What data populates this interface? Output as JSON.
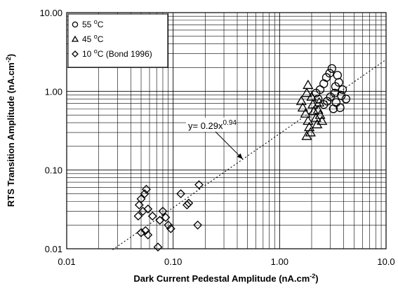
{
  "chart_data": {
    "type": "scatter",
    "x_scale": "log",
    "y_scale": "log",
    "xlim": [
      0.01,
      10.0
    ],
    "ylim": [
      0.01,
      10.0
    ],
    "grid": true,
    "legend_position": "top-left",
    "xlabel": {
      "text": "Dark Current Pedestal Amplitude (nA.cm",
      "sup": "-2",
      "tail": ")"
    },
    "ylabel": {
      "text": "RTS Transition Amplitude (nA.cm",
      "sup": "-2",
      "tail": ")"
    },
    "x_tick_labels": [
      "0.01",
      "0.10",
      "1.00",
      "10.0"
    ],
    "y_tick_labels": [
      "0.01",
      "0.10",
      "1.00",
      "10.00"
    ],
    "annotation": {
      "text": "y= 0.29x",
      "sup": "0.94",
      "arrow_to": [
        0.45,
        0.138
      ]
    },
    "fit": {
      "coef": 0.29,
      "exponent": 0.94,
      "x_range": [
        0.027,
        10.0
      ],
      "style": "dotted"
    },
    "series": [
      {
        "name": "55 °C",
        "label_parts": [
          "55 ",
          "o",
          "C"
        ],
        "marker": "circle",
        "points": [
          [
            2.4,
            1.05
          ],
          [
            2.6,
            1.25
          ],
          [
            2.75,
            1.5
          ],
          [
            3.1,
            1.95
          ],
          [
            2.95,
            1.7
          ],
          [
            3.5,
            1.6
          ],
          [
            3.6,
            1.3
          ],
          [
            3.9,
            1.05
          ],
          [
            4.2,
            0.8
          ],
          [
            3.3,
            0.95
          ],
          [
            3.0,
            0.85
          ],
          [
            2.8,
            0.75
          ],
          [
            3.4,
            0.72
          ],
          [
            3.7,
            0.62
          ],
          [
            3.2,
            0.6
          ],
          [
            2.6,
            0.68
          ],
          [
            2.3,
            0.8
          ],
          [
            2.2,
            0.95
          ],
          [
            3.8,
            0.88
          ],
          [
            3.35,
            1.15
          ]
        ]
      },
      {
        "name": "45 °C",
        "label_parts": [
          "45 ",
          "o",
          "C"
        ],
        "marker": "triangle",
        "points": [
          [
            1.85,
            1.2
          ],
          [
            1.8,
            0.95
          ],
          [
            1.6,
            0.75
          ],
          [
            1.65,
            0.62
          ],
          [
            1.75,
            0.52
          ],
          [
            1.85,
            0.42
          ],
          [
            1.9,
            0.35
          ],
          [
            1.8,
            0.27
          ],
          [
            2.0,
            0.85
          ],
          [
            2.05,
            0.68
          ],
          [
            2.1,
            0.56
          ],
          [
            2.2,
            0.46
          ],
          [
            2.25,
            0.38
          ],
          [
            2.3,
            0.58
          ],
          [
            2.4,
            0.5
          ],
          [
            2.5,
            0.42
          ],
          [
            2.35,
            0.72
          ],
          [
            1.95,
            0.3
          ]
        ]
      },
      {
        "name": "10 °C (Bond 1996)",
        "label_parts": [
          "10 ",
          "o",
          "C (Bond 1996)"
        ],
        "marker": "diamond",
        "points": [
          [
            0.056,
            0.057
          ],
          [
            0.054,
            0.05
          ],
          [
            0.05,
            0.043
          ],
          [
            0.048,
            0.036
          ],
          [
            0.052,
            0.03
          ],
          [
            0.058,
            0.032
          ],
          [
            0.047,
            0.026
          ],
          [
            0.055,
            0.017
          ],
          [
            0.05,
            0.016
          ],
          [
            0.058,
            0.015
          ],
          [
            0.064,
            0.026
          ],
          [
            0.075,
            0.023
          ],
          [
            0.08,
            0.03
          ],
          [
            0.085,
            0.025
          ],
          [
            0.09,
            0.02
          ],
          [
            0.095,
            0.018
          ],
          [
            0.072,
            0.0105
          ],
          [
            0.118,
            0.05
          ],
          [
            0.135,
            0.036
          ],
          [
            0.14,
            0.038
          ],
          [
            0.175,
            0.065
          ],
          [
            0.17,
            0.02
          ]
        ]
      }
    ]
  }
}
